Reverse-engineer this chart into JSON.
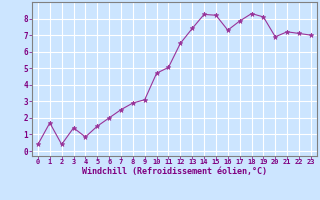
{
  "x": [
    0,
    1,
    2,
    3,
    4,
    5,
    6,
    7,
    8,
    9,
    10,
    11,
    12,
    13,
    14,
    15,
    16,
    17,
    18,
    19,
    20,
    21,
    22,
    23
  ],
  "y": [
    0.4,
    1.7,
    0.4,
    1.4,
    0.85,
    1.5,
    2.0,
    2.5,
    2.9,
    3.1,
    4.7,
    5.05,
    6.5,
    7.4,
    8.25,
    8.2,
    7.3,
    7.85,
    8.3,
    8.1,
    6.9,
    7.2,
    7.1,
    7.0
  ],
  "line_color": "#993399",
  "marker": "*",
  "marker_size": 3.5,
  "bg_color": "#cce5ff",
  "grid_color": "#ffffff",
  "xlabel": "Windchill (Refroidissement éolien,°C)",
  "xlabel_color": "#800080",
  "tick_label_color": "#800080",
  "spine_color": "#808080",
  "xlim": [
    -0.5,
    23.5
  ],
  "ylim": [
    -0.3,
    9.0
  ],
  "yticks": [
    0,
    1,
    2,
    3,
    4,
    5,
    6,
    7,
    8
  ],
  "xticks": [
    0,
    1,
    2,
    3,
    4,
    5,
    6,
    7,
    8,
    9,
    10,
    11,
    12,
    13,
    14,
    15,
    16,
    17,
    18,
    19,
    20,
    21,
    22,
    23
  ]
}
